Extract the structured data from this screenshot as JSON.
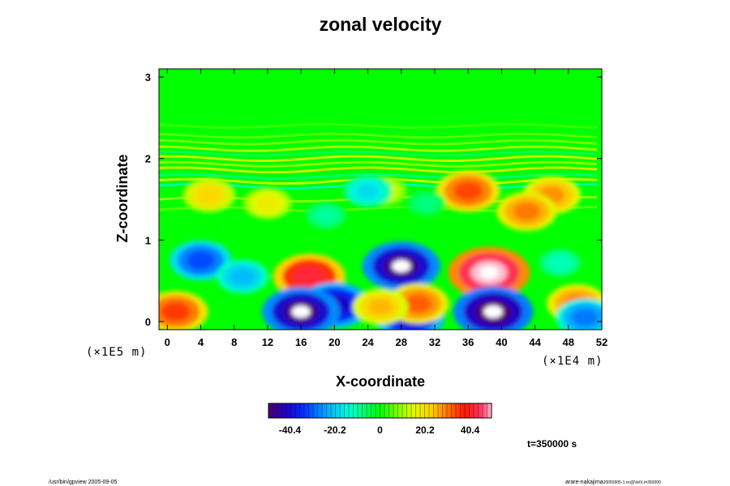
{
  "chart_data": {
    "type": "heatmap",
    "title": "zonal velocity",
    "xlabel": "X-coordinate",
    "ylabel": "Z-coordinate",
    "x_scale_note": "(×1E4 m)",
    "y_scale_note": "(×1E5 m)",
    "xlim": [
      -1,
      52
    ],
    "ylim": [
      -0.1,
      3.1
    ],
    "x_ticks": [
      "0",
      "4",
      "8",
      "12",
      "16",
      "20",
      "24",
      "28",
      "32",
      "36",
      "40",
      "44",
      "48",
      "52"
    ],
    "y_ticks": [
      "0",
      "1",
      "2",
      "3"
    ],
    "x_tick_values": [
      0,
      4,
      8,
      12,
      16,
      20,
      24,
      28,
      32,
      36,
      40,
      44,
      48,
      52
    ],
    "y_tick_values": [
      0,
      1,
      2,
      3
    ],
    "colorbar": {
      "ticks": [
        "-40.4",
        "-20.2",
        "0",
        "20.2",
        "40.4"
      ],
      "tick_values": [
        -40.4,
        -20.2,
        0,
        20.2,
        40.4
      ],
      "range": [
        -50,
        50
      ],
      "colormap": "rainbow"
    },
    "time_label": "t=350000 s",
    "features": [
      {
        "x": 28,
        "z": 0.68,
        "value": -48
      },
      {
        "x": 17,
        "z": 0.55,
        "value": 42
      },
      {
        "x": 38.5,
        "z": 0.6,
        "value": 52
      },
      {
        "x": 20,
        "z": 0.2,
        "value": -42
      },
      {
        "x": 16,
        "z": 0.12,
        "value": -48
      },
      {
        "x": 39,
        "z": 0.12,
        "value": -50
      },
      {
        "x": 29,
        "z": 0.05,
        "value": -40
      },
      {
        "x": 30,
        "z": 0.22,
        "value": 32
      },
      {
        "x": 25.5,
        "z": 0.18,
        "value": 25
      },
      {
        "x": 4,
        "z": 0.75,
        "value": -32
      },
      {
        "x": 9,
        "z": 0.55,
        "value": -22
      },
      {
        "x": 1,
        "z": 0.12,
        "value": 35
      },
      {
        "x": 49,
        "z": 0.22,
        "value": 30
      },
      {
        "x": 50,
        "z": 0.05,
        "value": -28
      },
      {
        "x": 36,
        "z": 1.6,
        "value": 34
      },
      {
        "x": 46,
        "z": 1.55,
        "value": 28
      },
      {
        "x": 43,
        "z": 1.35,
        "value": 30
      },
      {
        "x": 5,
        "z": 1.55,
        "value": 22
      },
      {
        "x": 12,
        "z": 1.45,
        "value": 18
      },
      {
        "x": 26,
        "z": 1.6,
        "value": 14
      },
      {
        "x": 24,
        "z": 1.6,
        "value": -18
      },
      {
        "x": 19,
        "z": 1.3,
        "value": -10
      },
      {
        "x": 31,
        "z": 1.45,
        "value": -8
      },
      {
        "x": 47,
        "z": 0.72,
        "value": -12
      }
    ]
  },
  "footer": {
    "left": "/usr/bin/gpview 2005-09-05",
    "right": "arare-nakajima",
    "right_small": "20050905-1.nc@VelX,t=350000"
  },
  "colors": {
    "background": "#00ff00",
    "frame": "#000000"
  }
}
